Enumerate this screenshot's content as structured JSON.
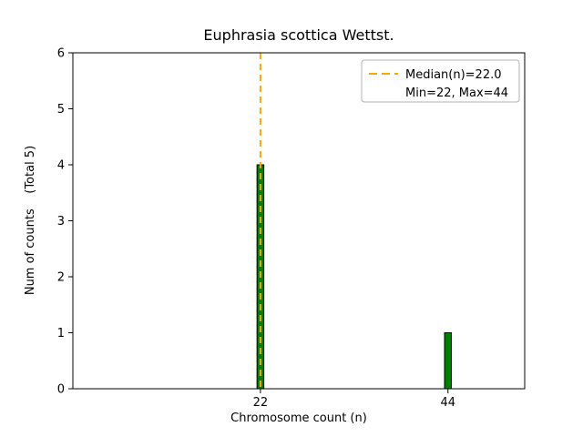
{
  "chart_data": {
    "type": "bar",
    "title": "Euphrasia scottica Wettst.",
    "xlabel": "Chromosome count (n)",
    "ylabel": "Num of counts    (Total 5)",
    "categories": [
      22,
      44
    ],
    "values": [
      4,
      1
    ],
    "total_counts": 5,
    "bar_color": "#008000",
    "bar_edge_color": "#000000",
    "bar_width_units": 0.8,
    "xlim": [
      0,
      53
    ],
    "ylim": [
      0,
      6
    ],
    "yticks": [
      0,
      1,
      2,
      3,
      4,
      5,
      6
    ],
    "xticks": [
      22,
      44
    ],
    "median_line": {
      "x": 22,
      "value_label": 22.0,
      "color": "#FFA500",
      "style": "dashed"
    },
    "min": 22,
    "max": 44,
    "legend": [
      "Median(n)=22.0",
      "Min=22, Max=44"
    ],
    "legend_position": "upper right",
    "grid": false
  }
}
